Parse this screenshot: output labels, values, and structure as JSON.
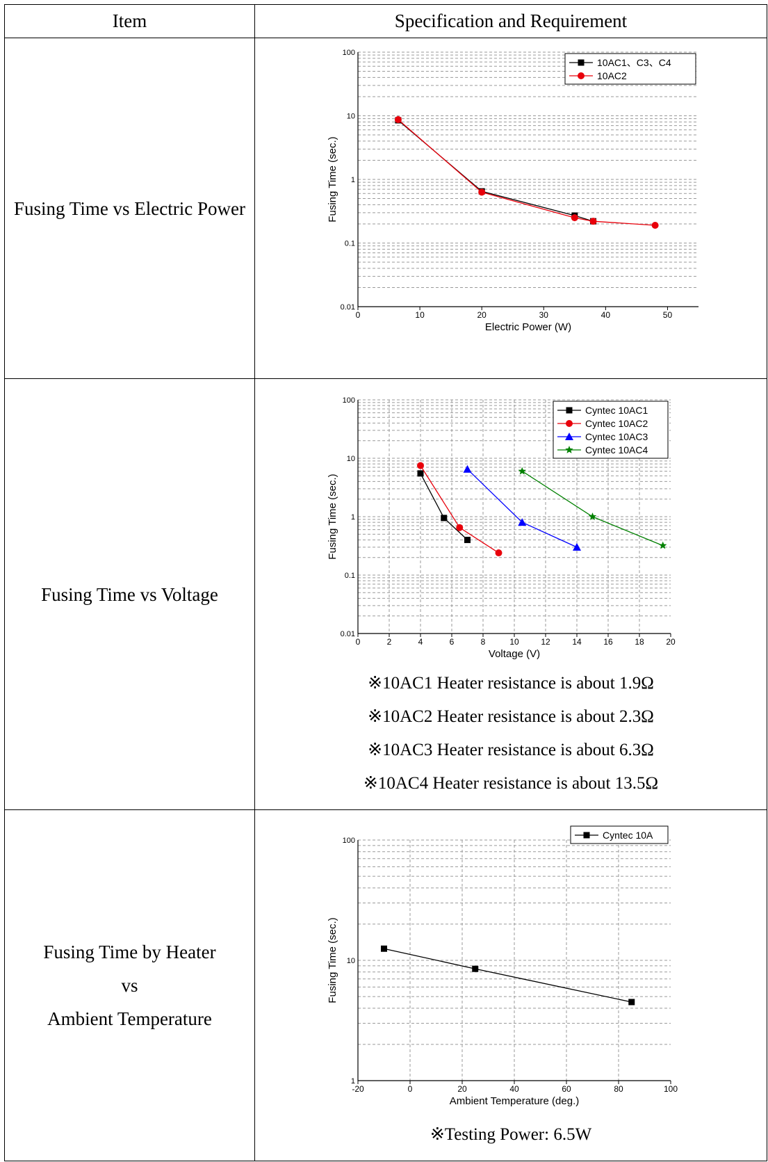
{
  "table": {
    "header": {
      "item": "Item",
      "spec": "Specification and Requirement"
    },
    "rows": [
      {
        "item_lines": [
          "Fusing Time vs Electric Power"
        ]
      },
      {
        "item_lines": [
          "Fusing Time vs Voltage"
        ],
        "notes": [
          "※10AC1 Heater resistance is about 1.9Ω",
          "※10AC2 Heater resistance is about 2.3Ω",
          "※10AC3 Heater resistance is about 6.3Ω",
          "※10AC4 Heater resistance is about 13.5Ω"
        ]
      },
      {
        "item_lines": [
          "Fusing Time by Heater",
          "vs",
          "Ambient Temperature"
        ],
        "notes": [
          "※Testing Power: 6.5W"
        ]
      }
    ]
  },
  "chart_data": [
    {
      "type": "line",
      "xlabel": "Electric Power (W)",
      "ylabel": "Fusing Time (sec.)",
      "xlim": [
        0,
        55
      ],
      "ylim": [
        0.01,
        100
      ],
      "yscale": "log",
      "xticks": [
        0,
        10,
        20,
        30,
        40,
        50
      ],
      "yticks": [
        0.01,
        0.1,
        1,
        10,
        100
      ],
      "ytick_labels": [
        "0.01",
        "0.1",
        "1",
        "10",
        "100"
      ],
      "grid": "y-dashed",
      "legend": "top-right",
      "series": [
        {
          "name": "10AC1、C3、C4",
          "marker": "square",
          "color": "#000000",
          "x": [
            6.5,
            20,
            35,
            38
          ],
          "y": [
            8.5,
            0.65,
            0.27,
            0.22
          ]
        },
        {
          "name": "10AC2",
          "marker": "circle",
          "color": "#e8000b",
          "x": [
            6.5,
            20,
            35,
            38,
            48
          ],
          "y": [
            8.7,
            0.63,
            0.25,
            0.22,
            0.19
          ]
        }
      ]
    },
    {
      "type": "line",
      "xlabel": "Voltage (V)",
      "ylabel": "Fusing Time (sec.)",
      "xlim": [
        0,
        20
      ],
      "ylim": [
        0.01,
        100
      ],
      "yscale": "log",
      "xticks": [
        0,
        2,
        4,
        6,
        8,
        10,
        12,
        14,
        16,
        18,
        20
      ],
      "yticks": [
        0.01,
        0.1,
        1,
        10,
        100
      ],
      "ytick_labels": [
        "0.01",
        "0.1",
        "1",
        "10",
        "100"
      ],
      "grid": "both-dashed",
      "legend": "top-right",
      "series": [
        {
          "name": "Cyntec 10AC1",
          "marker": "square",
          "color": "#000000",
          "x": [
            4,
            5.5,
            7
          ],
          "y": [
            5.5,
            0.95,
            0.4
          ]
        },
        {
          "name": "Cyntec 10AC2",
          "marker": "circle",
          "color": "#e8000b",
          "x": [
            4,
            6.5,
            9
          ],
          "y": [
            7.5,
            0.65,
            0.24
          ]
        },
        {
          "name": "Cyntec 10AC3",
          "marker": "triangle",
          "color": "#0000ff",
          "x": [
            7,
            10.5,
            14
          ],
          "y": [
            6.5,
            0.8,
            0.3
          ]
        },
        {
          "name": "Cyntec 10AC4",
          "marker": "star",
          "color": "#008000",
          "x": [
            10.5,
            15,
            19.5
          ],
          "y": [
            6.0,
            1.0,
            0.32
          ]
        }
      ]
    },
    {
      "type": "line",
      "xlabel": "Ambient Temperature (deg.)",
      "ylabel": "Fusing Time (sec.)",
      "xlim": [
        -20,
        100
      ],
      "ylim": [
        1,
        100
      ],
      "yscale": "log",
      "xticks": [
        -20,
        0,
        20,
        40,
        60,
        80,
        100
      ],
      "yticks": [
        1,
        10,
        100
      ],
      "ytick_labels": [
        "1",
        "10",
        "100"
      ],
      "grid": "both-dashed",
      "legend": "top-right",
      "series": [
        {
          "name": "Cyntec 10A",
          "marker": "square",
          "color": "#000000",
          "x": [
            -10,
            25,
            85
          ],
          "y": [
            12.5,
            8.5,
            4.5
          ]
        }
      ]
    }
  ]
}
